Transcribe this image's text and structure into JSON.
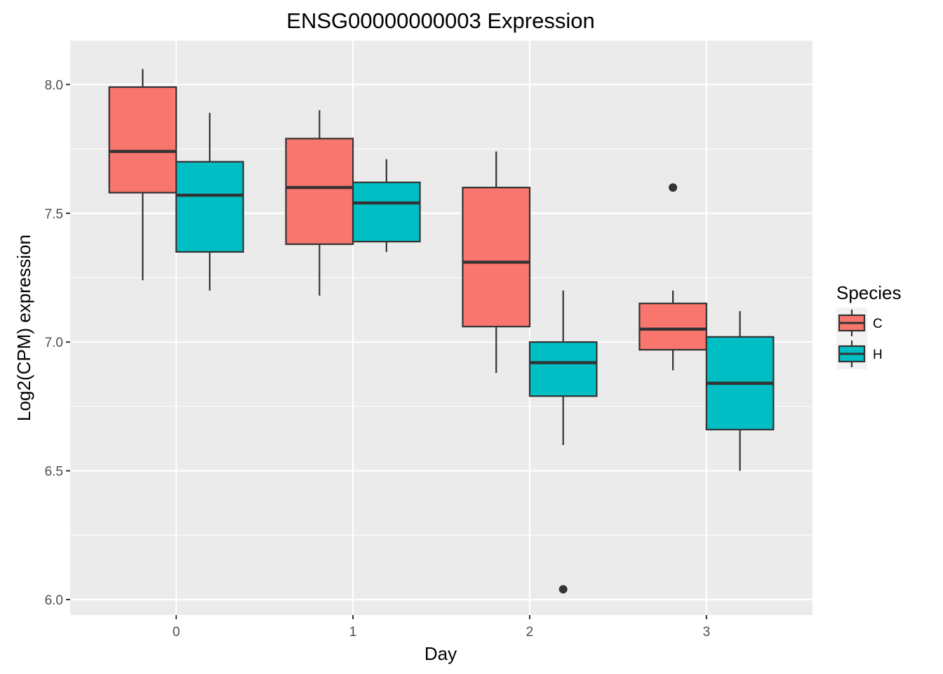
{
  "chart_data": {
    "type": "boxplot",
    "title": "ENSG00000000003 Expression",
    "xlabel": "Day",
    "ylabel": "Log2(CPM) expression",
    "categories": [
      "0",
      "1",
      "2",
      "3"
    ],
    "ylim": [
      5.94,
      8.17
    ],
    "yticks": [
      6.0,
      6.5,
      7.0,
      7.5,
      8.0
    ],
    "ytick_labels": [
      "6.0",
      "6.5",
      "7.0",
      "7.5",
      "8.0"
    ],
    "grid": true,
    "legend": {
      "title": "Species",
      "position": "right",
      "entries": [
        "C",
        "H"
      ]
    },
    "series": [
      {
        "name": "C",
        "color": "#F8766D",
        "boxes": [
          {
            "category": "0",
            "min": 7.24,
            "q1": 7.58,
            "median": 7.74,
            "q3": 7.99,
            "max": 8.06,
            "outliers": []
          },
          {
            "category": "1",
            "min": 7.18,
            "q1": 7.38,
            "median": 7.6,
            "q3": 7.79,
            "max": 7.9,
            "outliers": []
          },
          {
            "category": "2",
            "min": 6.88,
            "q1": 7.06,
            "median": 7.31,
            "q3": 7.6,
            "max": 7.74,
            "outliers": []
          },
          {
            "category": "3",
            "min": 6.89,
            "q1": 6.97,
            "median": 7.05,
            "q3": 7.15,
            "max": 7.2,
            "outliers": [
              7.6
            ]
          }
        ]
      },
      {
        "name": "H",
        "color": "#00BFC4",
        "boxes": [
          {
            "category": "0",
            "min": 7.2,
            "q1": 7.35,
            "median": 7.57,
            "q3": 7.7,
            "max": 7.89,
            "outliers": []
          },
          {
            "category": "1",
            "min": 7.35,
            "q1": 7.39,
            "median": 7.54,
            "q3": 7.62,
            "max": 7.71,
            "outliers": []
          },
          {
            "category": "2",
            "min": 6.6,
            "q1": 6.79,
            "median": 6.92,
            "q3": 7.0,
            "max": 7.2,
            "outliers": [
              6.04
            ]
          },
          {
            "category": "3",
            "min": 6.5,
            "q1": 6.66,
            "median": 6.84,
            "q3": 7.02,
            "max": 7.12,
            "outliers": []
          }
        ]
      }
    ]
  }
}
